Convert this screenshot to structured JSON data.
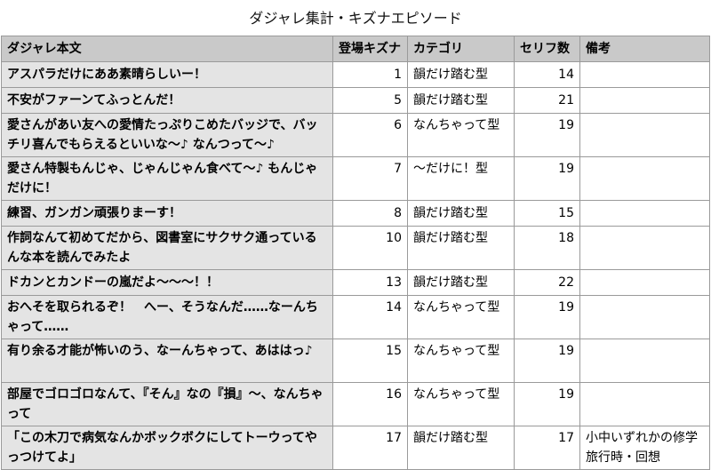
{
  "title": "ダジャレ集計・キズナエピソード",
  "headers": {
    "text": "ダジャレ本文",
    "kizuna": "登場キズナ",
    "category": "カテゴリ",
    "lines": "セリフ数",
    "note": "備考"
  },
  "rows": [
    {
      "text": "アスパラだけにああ素晴らしいー！",
      "kizuna": "1",
      "category": "韻だけ踏む型",
      "lines": "14",
      "note": ""
    },
    {
      "text": "不安がファーンてふっとんだ！",
      "kizuna": "5",
      "category": "韻だけ踏む型",
      "lines": "21",
      "note": ""
    },
    {
      "text": "愛さんがあい友への愛情たっぷりこめたバッジで、バッチリ喜んでもらえるといいな〜♪ なんつって〜♪",
      "kizuna": "6",
      "category": "なんちゃって型",
      "lines": "19",
      "note": ""
    },
    {
      "text": "愛さん特製もんじゃ、じゃんじゃん食べて〜♪ もんじゃだけに！",
      "kizuna": "7",
      "category": "〜だけに！型",
      "lines": "19",
      "note": ""
    },
    {
      "text": "練習、ガンガン頑張りまーす！",
      "kizuna": "8",
      "category": "韻だけ踏む型",
      "lines": "15",
      "note": ""
    },
    {
      "text": "作詞なんて初めてだから、図書室にサクサク通っているんな本を読んでみたよ",
      "kizuna": "10",
      "category": "韻だけ踏む型",
      "lines": "18",
      "note": ""
    },
    {
      "text": "ドカンとカンドーの嵐だよ〜〜〜！！",
      "kizuna": "13",
      "category": "韻だけ踏む型",
      "lines": "22",
      "note": ""
    },
    {
      "text": "おへそを取られるぞ！　へー、そうなんだ……なーんちゃって……",
      "kizuna": "14",
      "category": "なんちゃって型",
      "lines": "19",
      "note": ""
    },
    {
      "text": "有り余る才能が怖いのう、なーんちゃって、あははっ♪",
      "kizuna": "15",
      "category": "なんちゃって型",
      "lines": "19",
      "note": ""
    },
    {
      "text": "部屋でゴロゴロなんて、『そん』なの『損』〜、なんちゃって",
      "kizuna": "16",
      "category": "なんちゃって型",
      "lines": "19",
      "note": ""
    },
    {
      "text": "「この木刀で病気なんかボックボクにしてトーウってやっつけてよ」",
      "kizuna": "17",
      "category": "韻だけ踏む型",
      "lines": "17",
      "note": "小中いずれかの修学旅行時・回想"
    }
  ]
}
